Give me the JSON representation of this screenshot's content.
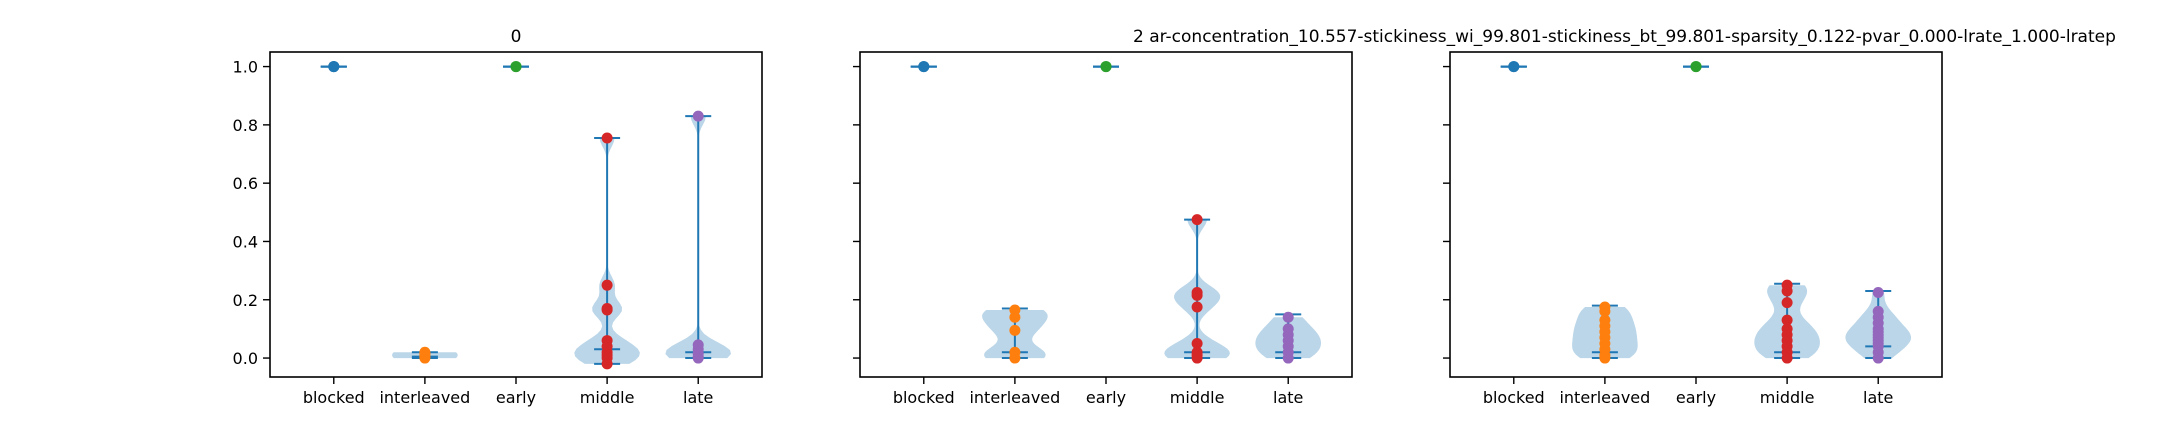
{
  "figure": {
    "titles": [
      "0",
      "",
      "2    ar-concentration_10.557-stickiness_wi_99.801-stickiness_bt_99.801-sparsity_0.122-pvar_0.000-lrate_1.000-lratep"
    ]
  },
  "chart_data": [
    {
      "type": "violin",
      "title": "0",
      "categories": [
        "blocked",
        "interleaved",
        "early",
        "middle",
        "late"
      ],
      "ylim": [
        -0.065,
        1.05
      ],
      "yticks": [
        "0.0",
        "0.2",
        "0.4",
        "0.6",
        "0.8",
        "1.0"
      ],
      "series": [
        {
          "category": "blocked",
          "color": "#1f77b4",
          "min": 1.0,
          "median": 1.0,
          "max": 1.0,
          "points": [
            1.0,
            1.0,
            1.0
          ]
        },
        {
          "category": "interleaved",
          "color": "#ff7f0e",
          "min": 0.0,
          "median": 0.005,
          "max": 0.02,
          "points": [
            0.0,
            0.005,
            0.01,
            0.015,
            0.02
          ]
        },
        {
          "category": "early",
          "color": "#2ca02c",
          "min": 1.0,
          "median": 1.0,
          "max": 1.0,
          "points": [
            1.0,
            1.0
          ]
        },
        {
          "category": "middle",
          "color": "#d62728",
          "min": -0.02,
          "median": 0.03,
          "max": 0.755,
          "points": [
            0.755,
            0.25,
            0.17,
            0.165,
            0.06,
            0.04,
            0.02,
            0.01,
            0.0,
            -0.02
          ]
        },
        {
          "category": "late",
          "color": "#9467bd",
          "min": 0.0,
          "median": 0.02,
          "max": 0.83,
          "points": [
            0.83,
            0.045,
            0.03,
            0.015,
            0.005,
            0.0
          ]
        }
      ]
    },
    {
      "type": "violin",
      "title": "",
      "categories": [
        "blocked",
        "interleaved",
        "early",
        "middle",
        "late"
      ],
      "ylim": [
        -0.065,
        1.05
      ],
      "series": [
        {
          "category": "blocked",
          "color": "#1f77b4",
          "min": 1.0,
          "median": 1.0,
          "max": 1.0,
          "points": [
            1.0,
            1.0
          ]
        },
        {
          "category": "interleaved",
          "color": "#ff7f0e",
          "min": 0.0,
          "median": 0.02,
          "max": 0.17,
          "points": [
            0.165,
            0.14,
            0.095,
            0.02,
            0.0
          ]
        },
        {
          "category": "early",
          "color": "#2ca02c",
          "min": 1.0,
          "median": 1.0,
          "max": 1.0,
          "points": [
            1.0,
            1.0
          ]
        },
        {
          "category": "middle",
          "color": "#d62728",
          "min": 0.0,
          "median": 0.02,
          "max": 0.475,
          "points": [
            0.475,
            0.225,
            0.215,
            0.175,
            0.05,
            0.02,
            0.01,
            0.0
          ]
        },
        {
          "category": "late",
          "color": "#9467bd",
          "min": 0.0,
          "median": 0.02,
          "max": 0.15,
          "points": [
            0.14,
            0.1,
            0.08,
            0.06,
            0.04,
            0.02,
            0.0
          ]
        }
      ]
    },
    {
      "type": "violin",
      "title": "2    ar-concentration_10.557-stickiness_wi_99.801-stickiness_bt_99.801-sparsity_0.122-pvar_0.000-lrate_1.000-lratep",
      "categories": [
        "blocked",
        "interleaved",
        "early",
        "middle",
        "late"
      ],
      "ylim": [
        -0.065,
        1.05
      ],
      "series": [
        {
          "category": "blocked",
          "color": "#1f77b4",
          "min": 1.0,
          "median": 1.0,
          "max": 1.0,
          "points": [
            1.0,
            1.0
          ]
        },
        {
          "category": "interleaved",
          "color": "#ff7f0e",
          "min": 0.0,
          "median": 0.02,
          "max": 0.18,
          "points": [
            0.175,
            0.16,
            0.13,
            0.11,
            0.09,
            0.07,
            0.05,
            0.03,
            0.01,
            0.0
          ]
        },
        {
          "category": "early",
          "color": "#2ca02c",
          "min": 1.0,
          "median": 1.0,
          "max": 1.0,
          "points": [
            1.0,
            1.0
          ]
        },
        {
          "category": "middle",
          "color": "#d62728",
          "min": 0.0,
          "median": 0.02,
          "max": 0.255,
          "points": [
            0.25,
            0.23,
            0.19,
            0.13,
            0.1,
            0.08,
            0.06,
            0.04,
            0.02,
            0.0
          ]
        },
        {
          "category": "late",
          "color": "#9467bd",
          "min": 0.0,
          "median": 0.04,
          "max": 0.23,
          "points": [
            0.225,
            0.16,
            0.14,
            0.12,
            0.1,
            0.09,
            0.08,
            0.07,
            0.06,
            0.05,
            0.04,
            0.02,
            0.0
          ]
        }
      ]
    }
  ]
}
